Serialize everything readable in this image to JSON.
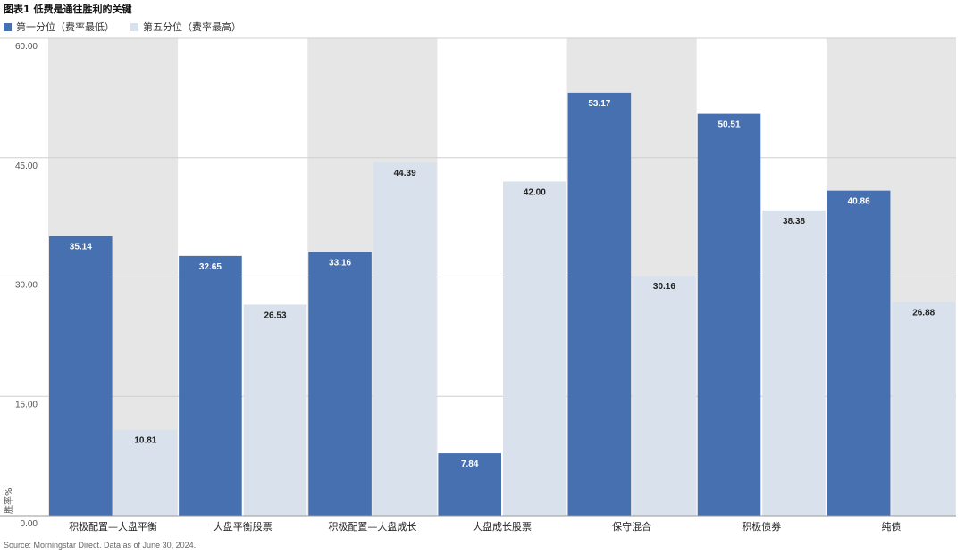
{
  "chart_data": {
    "type": "bar",
    "title": "图表1 低费是通往胜利的关键",
    "ylabel": "胜率%",
    "ylim": [
      0,
      60
    ],
    "yticks": [
      "0.00",
      "15.00",
      "30.00",
      "45.00",
      "60.00"
    ],
    "grid": true,
    "legend_position": "top-left",
    "categories": [
      "积极配置—大盘平衡",
      "大盘平衡股票",
      "积极配置—大盘成长",
      "大盘成长股票",
      "保守混合",
      "积极债券",
      "纯债"
    ],
    "series": [
      {
        "name": "第一分位（费率最低）",
        "color": "#4670b0",
        "label_color": "#ffffff",
        "values": [
          35.14,
          32.65,
          33.16,
          7.84,
          53.17,
          50.51,
          40.86
        ],
        "labels": [
          "35.14",
          "32.65",
          "33.16",
          "7.84",
          "53.17",
          "50.51",
          "40.86"
        ]
      },
      {
        "name": "第五分位（费率最高）",
        "color": "#d9e2ec",
        "label_color": "#222222",
        "values": [
          10.81,
          26.53,
          44.39,
          42.0,
          30.16,
          38.38,
          26.88
        ],
        "labels": [
          "10.81",
          "26.53",
          "44.39",
          "42.00",
          "30.16",
          "38.38",
          "26.88"
        ]
      }
    ],
    "band_color": "#e6e6e6"
  },
  "source": "Source: Morningstar Direct. Data as of June 30, 2024."
}
